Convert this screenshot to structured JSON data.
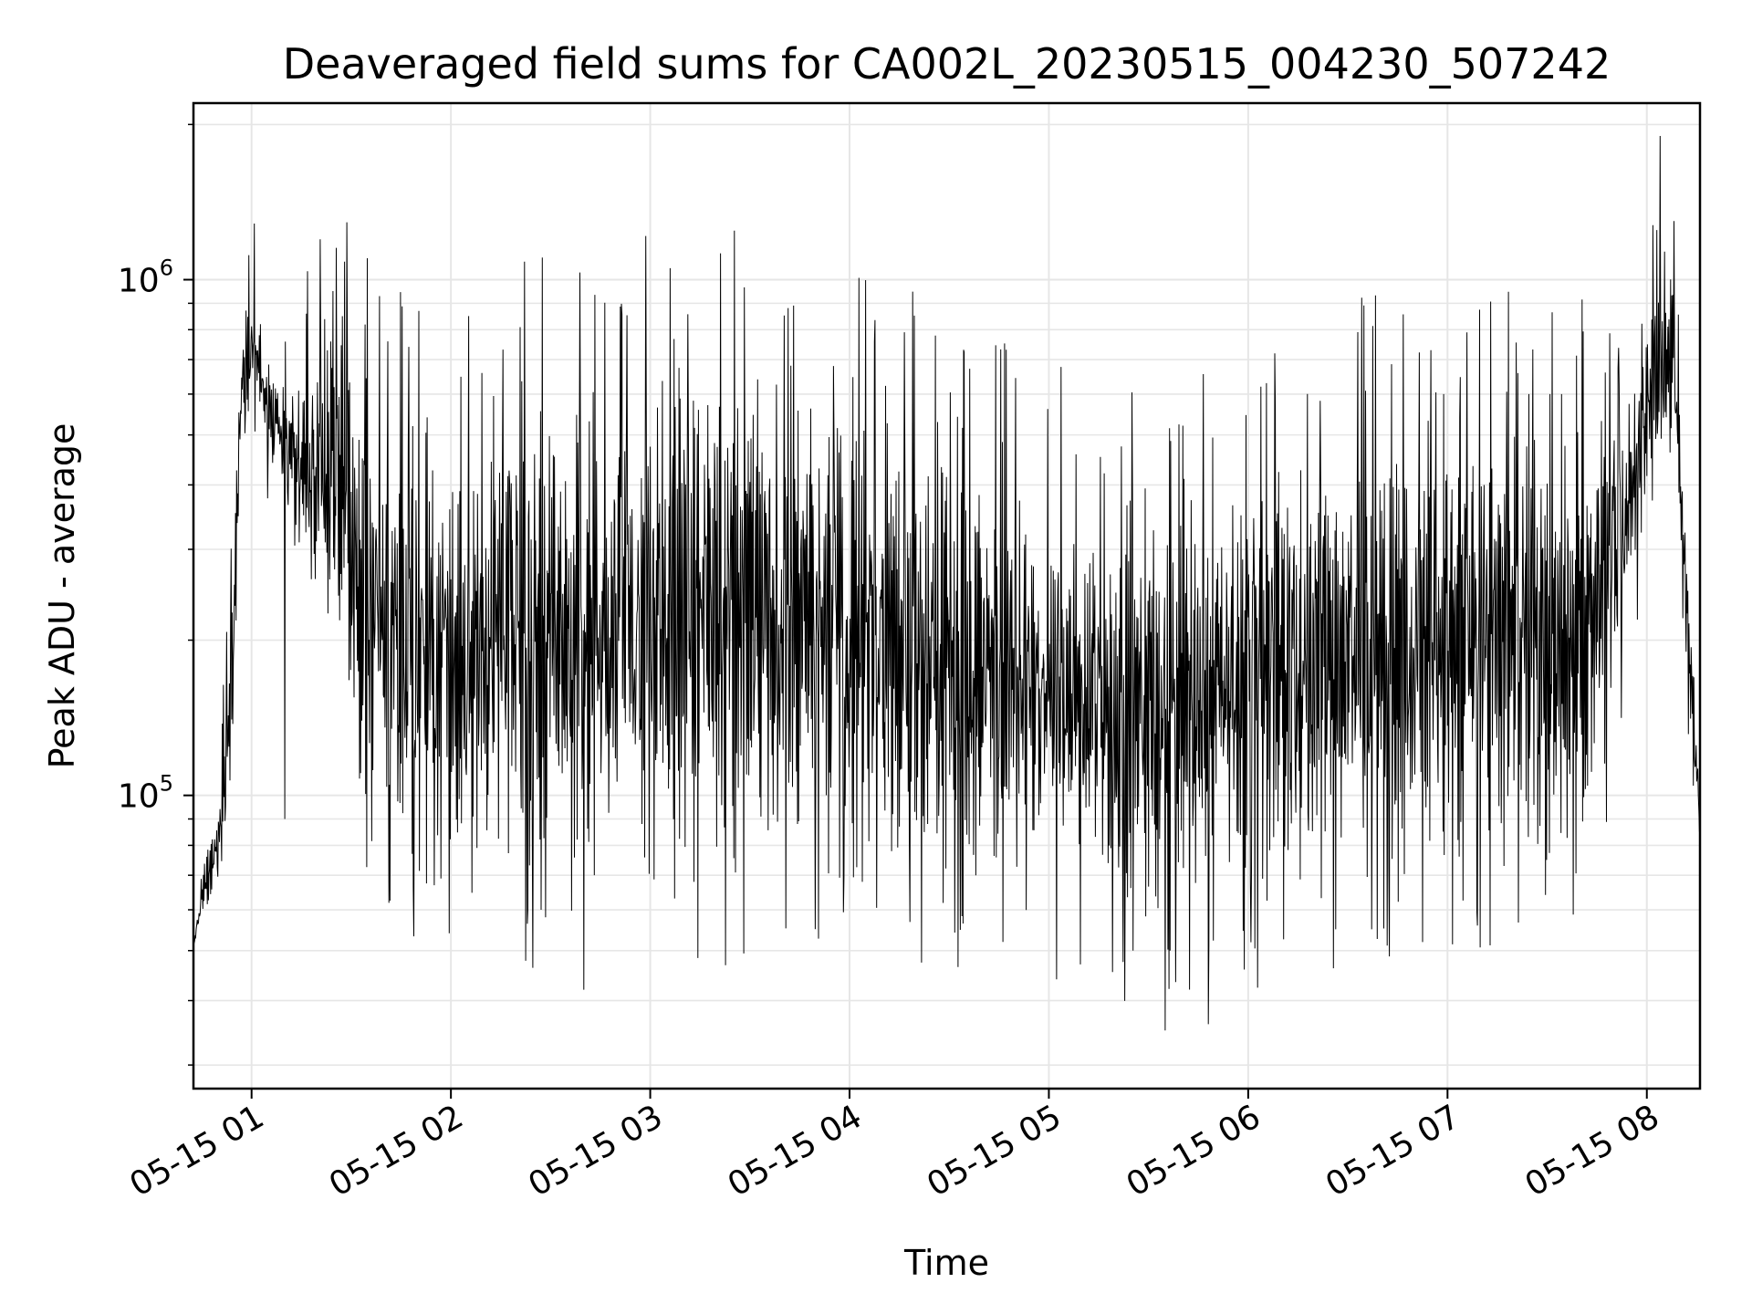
{
  "chart_data": {
    "type": "line",
    "title": "Deaveraged field sums for CA002L_20230515_004230_507242",
    "xlabel": "Time",
    "ylabel": "Peak ADU - average",
    "x_range": [
      "2023-05-15 00:42:30",
      "2023-05-15 08:16:00"
    ],
    "y_scale": "log",
    "ylim": [
      27000,
      2200000
    ],
    "y_major_ticks": [
      {
        "value": 100000,
        "base": "10",
        "exp": "5"
      },
      {
        "value": 1000000,
        "base": "10",
        "exp": "6"
      }
    ],
    "x_ticks": [
      {
        "value": "2023-05-15 01:00",
        "label": "05-15 01"
      },
      {
        "value": "2023-05-15 02:00",
        "label": "05-15 02"
      },
      {
        "value": "2023-05-15 03:00",
        "label": "05-15 03"
      },
      {
        "value": "2023-05-15 04:00",
        "label": "05-15 04"
      },
      {
        "value": "2023-05-15 05:00",
        "label": "05-15 05"
      },
      {
        "value": "2023-05-15 06:00",
        "label": "05-15 06"
      },
      {
        "value": "2023-05-15 07:00",
        "label": "05-15 07"
      },
      {
        "value": "2023-05-15 08:00",
        "label": "05-15 08"
      }
    ],
    "grid": true,
    "line_color": "#000000",
    "grid_color": "#e6e6e6",
    "series": [
      {
        "sample_interval_seconds": 10,
        "envelope": [
          {
            "t": "2023-05-15 00:42:30",
            "low": 50000,
            "high": 52000
          },
          {
            "t": "2023-05-15 00:46",
            "low": 60000,
            "high": 75000
          },
          {
            "t": "2023-05-15 00:50",
            "low": 65000,
            "high": 100000
          },
          {
            "t": "2023-05-15 00:54",
            "low": 80000,
            "high": 300000
          },
          {
            "t": "2023-05-15 00:57",
            "low": 500000,
            "high": 850000
          },
          {
            "t": "2023-05-15 01:00",
            "low": 600000,
            "high": 950000
          },
          {
            "t": "2023-05-15 01:06",
            "low": 400000,
            "high": 700000
          },
          {
            "t": "2023-05-15 01:15",
            "low": 250000,
            "high": 700000
          },
          {
            "t": "2023-05-15 01:24",
            "low": 200000,
            "high": 800000
          },
          {
            "t": "2023-05-15 01:28",
            "low": 150000,
            "high": 850000
          },
          {
            "t": "2023-05-15 01:35",
            "low": 70000,
            "high": 700000
          },
          {
            "t": "2023-05-15 01:45",
            "low": 65000,
            "high": 600000
          },
          {
            "t": "2023-05-15 02:00",
            "low": 70000,
            "high": 500000
          },
          {
            "t": "2023-05-15 02:20",
            "low": 60000,
            "high": 700000
          },
          {
            "t": "2023-05-15 02:40",
            "low": 60000,
            "high": 750000
          },
          {
            "t": "2023-05-15 03:00",
            "low": 65000,
            "high": 850000
          },
          {
            "t": "2023-05-15 03:20",
            "low": 60000,
            "high": 850000
          },
          {
            "t": "2023-05-15 03:40",
            "low": 65000,
            "high": 750000
          },
          {
            "t": "2023-05-15 04:00",
            "low": 70000,
            "high": 650000
          },
          {
            "t": "2023-05-15 04:20",
            "low": 60000,
            "high": 600000
          },
          {
            "t": "2023-05-15 04:40",
            "low": 55000,
            "high": 500000
          },
          {
            "t": "2023-05-15 05:00",
            "low": 55000,
            "high": 450000
          },
          {
            "t": "2023-05-15 05:20",
            "low": 50000,
            "high": 400000
          },
          {
            "t": "2023-05-15 05:40",
            "low": 50000,
            "high": 450000
          },
          {
            "t": "2023-05-15 06:00",
            "low": 55000,
            "high": 550000
          },
          {
            "t": "2023-05-15 06:20",
            "low": 55000,
            "high": 550000
          },
          {
            "t": "2023-05-15 06:40",
            "low": 55000,
            "high": 600000
          },
          {
            "t": "2023-05-15 07:00",
            "low": 60000,
            "high": 600000
          },
          {
            "t": "2023-05-15 07:20",
            "low": 60000,
            "high": 600000
          },
          {
            "t": "2023-05-15 07:40",
            "low": 60000,
            "high": 600000
          },
          {
            "t": "2023-05-15 07:52",
            "low": 150000,
            "high": 700000
          },
          {
            "t": "2023-05-15 07:58",
            "low": 300000,
            "high": 800000
          },
          {
            "t": "2023-05-15 08:04",
            "low": 400000,
            "high": 1100000
          },
          {
            "t": "2023-05-15 08:08",
            "low": 500000,
            "high": 1000000
          },
          {
            "t": "2023-05-15 08:12",
            "low": 130000,
            "high": 400000
          },
          {
            "t": "2023-05-15 08:16",
            "low": 80000,
            "high": 100000
          }
        ],
        "spikes": [
          {
            "t": "2023-05-15 01:10",
            "y": 90000
          },
          {
            "t": "2023-05-15 02:40",
            "y": 42000
          },
          {
            "t": "2023-05-15 05:35",
            "y": 35000
          },
          {
            "t": "2023-05-15 05:48",
            "y": 36000
          },
          {
            "t": "2023-05-15 08:04",
            "y": 1900000
          }
        ]
      }
    ]
  }
}
